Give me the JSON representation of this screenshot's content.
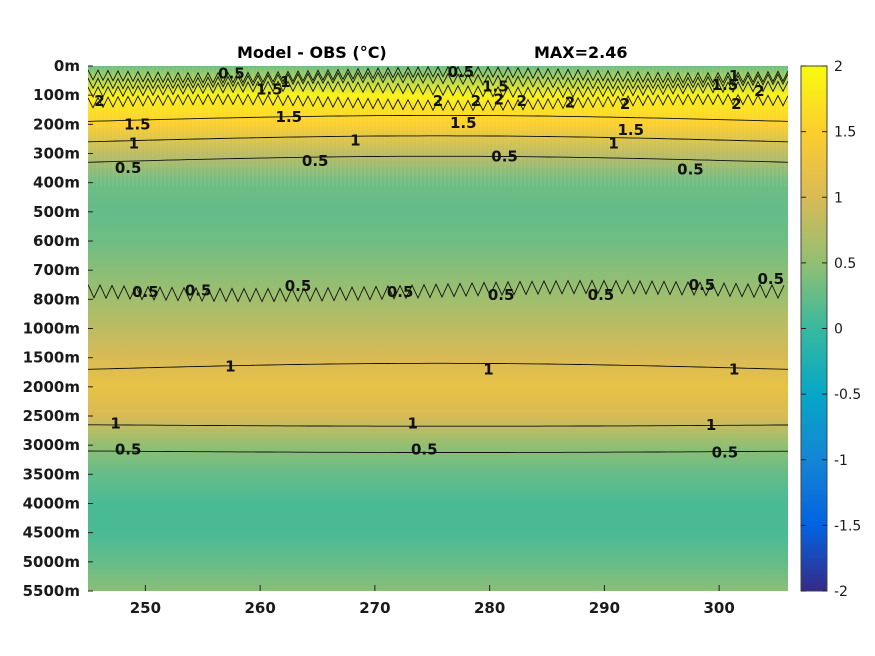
{
  "chart_data": {
    "type": "heatmap",
    "title_left": "Model - OBS (°C)",
    "title_right": "MAX=2.46",
    "colormap": "parula",
    "x_ticks": [
      250,
      260,
      270,
      280,
      290,
      300
    ],
    "xlim": [
      245,
      306
    ],
    "y_ticks": [
      "0m",
      "100m",
      "200m",
      "300m",
      "400m",
      "500m",
      "600m",
      "700m",
      "800m",
      "1000m",
      "1500m",
      "2000m",
      "2500m",
      "3000m",
      "3500m",
      "4000m",
      "4500m",
      "5000m",
      "5500m"
    ],
    "y_direction": "reversed",
    "colorbar": {
      "ticks": [
        2,
        1.5,
        1,
        0.5,
        0,
        -0.5,
        -1,
        -1.5,
        -2
      ],
      "range": [
        -2,
        2
      ]
    },
    "value_profile_by_depth": [
      {
        "depth": "0m",
        "value": 0.3
      },
      {
        "depth": "100m",
        "value": 1.9
      },
      {
        "depth": "200m",
        "value": 1.5
      },
      {
        "depth": "300m",
        "value": 0.8
      },
      {
        "depth": "400m",
        "value": 0.3
      },
      {
        "depth": "500m",
        "value": 0.25
      },
      {
        "depth": "600m",
        "value": 0.3
      },
      {
        "depth": "700m",
        "value": 0.45
      },
      {
        "depth": "800m",
        "value": 0.6
      },
      {
        "depth": "1000m",
        "value": 0.8
      },
      {
        "depth": "1500m",
        "value": 1.0
      },
      {
        "depth": "2000m",
        "value": 1.2
      },
      {
        "depth": "2500m",
        "value": 1.0
      },
      {
        "depth": "3000m",
        "value": 0.5
      },
      {
        "depth": "3500m",
        "value": 0.25
      },
      {
        "depth": "4000m",
        "value": 0.1
      },
      {
        "depth": "4500m",
        "value": 0.1
      },
      {
        "depth": "5000m",
        "value": 0.25
      },
      {
        "depth": "5500m",
        "value": 0.45
      }
    ],
    "contour_labels": [
      {
        "text": "0.5",
        "x": 257.5,
        "depth_index": 0.25
      },
      {
        "text": "1",
        "x": 262.2,
        "depth_index": 0.55
      },
      {
        "text": "1.5",
        "x": 260.8,
        "depth_index": 0.8
      },
      {
        "text": "0.5",
        "x": 277.5,
        "depth_index": 0.2
      },
      {
        "text": "1.5",
        "x": 280.5,
        "depth_index": 0.7
      },
      {
        "text": "1",
        "x": 301.3,
        "depth_index": 0.35
      },
      {
        "text": "1.5",
        "x": 300.5,
        "depth_index": 0.65
      },
      {
        "text": "2",
        "x": 303.5,
        "depth_index": 0.85
      },
      {
        "text": "2",
        "x": 275.5,
        "depth_index": 1.2
      },
      {
        "text": "2",
        "x": 278.8,
        "depth_index": 1.2
      },
      {
        "text": "2",
        "x": 280.8,
        "depth_index": 1.15
      },
      {
        "text": "2",
        "x": 282.8,
        "depth_index": 1.2
      },
      {
        "text": "2",
        "x": 287.0,
        "depth_index": 1.25
      },
      {
        "text": "2",
        "x": 291.8,
        "depth_index": 1.3
      },
      {
        "text": "2",
        "x": 301.5,
        "depth_index": 1.3
      },
      {
        "text": "2",
        "x": 246.0,
        "depth_index": 1.2
      },
      {
        "text": "1.5",
        "x": 249.3,
        "depth_index": 2.0
      },
      {
        "text": "1.5",
        "x": 262.5,
        "depth_index": 1.75
      },
      {
        "text": "1.5",
        "x": 277.7,
        "depth_index": 1.95
      },
      {
        "text": "1.5",
        "x": 292.3,
        "depth_index": 2.2
      },
      {
        "text": "1",
        "x": 249.0,
        "depth_index": 2.65
      },
      {
        "text": "1",
        "x": 268.3,
        "depth_index": 2.55
      },
      {
        "text": "1",
        "x": 290.8,
        "depth_index": 2.65
      },
      {
        "text": "0.5",
        "x": 248.5,
        "depth_index": 3.5
      },
      {
        "text": "0.5",
        "x": 264.8,
        "depth_index": 3.25
      },
      {
        "text": "0.5",
        "x": 281.3,
        "depth_index": 3.1
      },
      {
        "text": "0.5",
        "x": 297.5,
        "depth_index": 3.55
      },
      {
        "text": "0.5",
        "x": 250.0,
        "depth_index": 7.75
      },
      {
        "text": "0.5",
        "x": 254.6,
        "depth_index": 7.7
      },
      {
        "text": "0.5",
        "x": 263.3,
        "depth_index": 7.55
      },
      {
        "text": "0.5",
        "x": 272.2,
        "depth_index": 7.75
      },
      {
        "text": "0.5",
        "x": 281.0,
        "depth_index": 7.85
      },
      {
        "text": "0.5",
        "x": 289.7,
        "depth_index": 7.85
      },
      {
        "text": "0.5",
        "x": 298.5,
        "depth_index": 7.5
      },
      {
        "text": "0.5",
        "x": 304.5,
        "depth_index": 7.3
      },
      {
        "text": "1",
        "x": 257.4,
        "depth_index": 10.3
      },
      {
        "text": "1",
        "x": 279.9,
        "depth_index": 10.4
      },
      {
        "text": "1",
        "x": 301.3,
        "depth_index": 10.4
      },
      {
        "text": "1",
        "x": 247.4,
        "depth_index": 12.25
      },
      {
        "text": "1",
        "x": 273.3,
        "depth_index": 12.25
      },
      {
        "text": "1",
        "x": 299.3,
        "depth_index": 12.3
      },
      {
        "text": "0.5",
        "x": 248.5,
        "depth_index": 13.15
      },
      {
        "text": "0.5",
        "x": 274.3,
        "depth_index": 13.15
      },
      {
        "text": "0.5",
        "x": 300.5,
        "depth_index": 13.25
      }
    ],
    "contour_lines": [
      {
        "level": 0.5,
        "depth_index": 0.3,
        "style": "wavy"
      },
      {
        "level": 1,
        "depth_index": 0.5,
        "style": "wavy"
      },
      {
        "level": 1.5,
        "depth_index": 0.8,
        "style": "wavy"
      },
      {
        "level": 2,
        "depth_index": 1.25,
        "style": "wavy"
      },
      {
        "level": 1.5,
        "depth_index": 1.9,
        "style": "smooth"
      },
      {
        "level": 1,
        "depth_index": 2.6,
        "style": "smooth"
      },
      {
        "level": 0.5,
        "depth_index": 3.3,
        "style": "smooth"
      },
      {
        "level": 0.5,
        "depth_index": 7.7,
        "style": "spiky"
      },
      {
        "level": 1,
        "depth_index": 10.4,
        "style": "smooth"
      },
      {
        "level": 1,
        "depth_index": 12.3,
        "style": "flat"
      },
      {
        "level": 0.5,
        "depth_index": 13.2,
        "style": "flat"
      }
    ]
  }
}
